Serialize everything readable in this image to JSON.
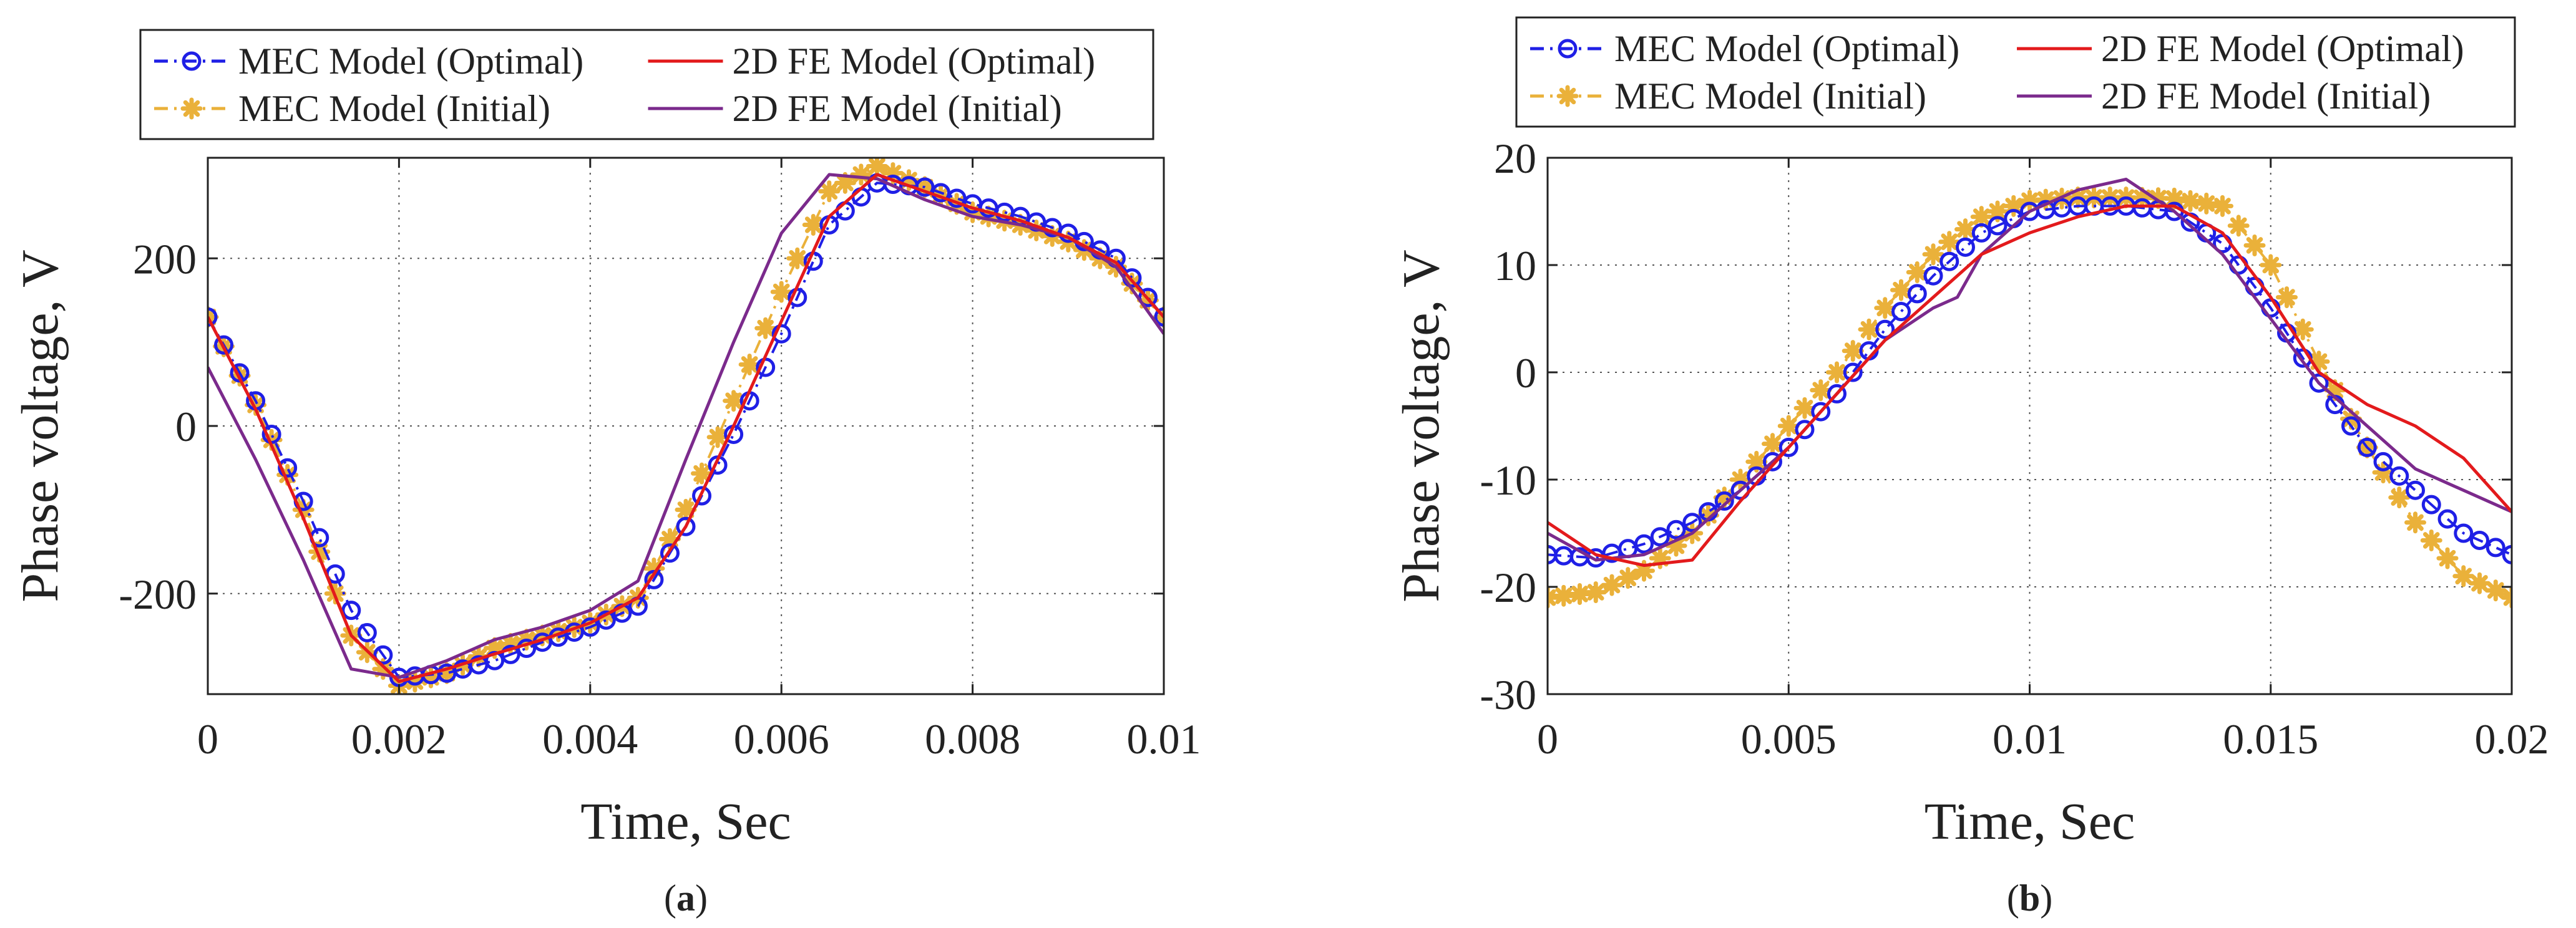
{
  "chart_data": [
    {
      "type": "line",
      "panel_label": "a",
      "xlabel": "Time, Sec",
      "ylabel": "Phase voltage, V",
      "xlim": [
        0,
        0.01
      ],
      "ylim": [
        -320,
        320
      ],
      "xticks": [
        0,
        0.002,
        0.004,
        0.006,
        0.008,
        0.01
      ],
      "xtick_labels": [
        "0",
        "0.002",
        "0.004",
        "0.006",
        "0.008",
        "0.01"
      ],
      "yticks": [
        -200,
        0,
        200
      ],
      "ytick_labels": [
        "-200",
        "0",
        "200"
      ],
      "grid": "dotted",
      "legend": [
        {
          "label": "MEC Model (Optimal)",
          "color": "#1f1fe6",
          "style": "dashdot-circle"
        },
        {
          "label": "2D FE Model (Optimal)",
          "color": "#e31a1c",
          "style": "solid"
        },
        {
          "label": "MEC Model (Initial)",
          "color": "#eab13a",
          "style": "dashdot-star"
        },
        {
          "label": "2D FE Model (Initial)",
          "color": "#7b2a8c",
          "style": "solid"
        }
      ],
      "series": [
        {
          "name": "MEC Model (Optimal)",
          "color": "#1f1fe6",
          "marker": "circle",
          "x": [
            0,
            0.0005,
            0.001,
            0.0015,
            0.002,
            0.0025,
            0.003,
            0.0035,
            0.004,
            0.0045,
            0.005,
            0.0055,
            0.006,
            0.0065,
            0.007,
            0.0075,
            0.008,
            0.0085,
            0.009,
            0.0095,
            0.01
          ],
          "y": [
            130,
            30,
            -90,
            -220,
            -300,
            -295,
            -280,
            -258,
            -240,
            -215,
            -120,
            -10,
            110,
            240,
            290,
            285,
            265,
            250,
            230,
            200,
            130
          ]
        },
        {
          "name": "2D FE Model (Optimal)",
          "color": "#e31a1c",
          "marker": "none",
          "x": [
            0,
            0.0005,
            0.001,
            0.0015,
            0.002,
            0.0025,
            0.003,
            0.0035,
            0.004,
            0.0045,
            0.005,
            0.0055,
            0.006,
            0.0065,
            0.007,
            0.0075,
            0.008,
            0.0085,
            0.009,
            0.0095,
            0.01
          ],
          "y": [
            130,
            20,
            -110,
            -250,
            -305,
            -290,
            -272,
            -255,
            -235,
            -205,
            -120,
            0,
            125,
            250,
            300,
            280,
            260,
            245,
            225,
            195,
            130
          ]
        },
        {
          "name": "MEC Model (Initial)",
          "color": "#eab13a",
          "marker": "star",
          "x": [
            0,
            0.0005,
            0.001,
            0.0015,
            0.002,
            0.0025,
            0.003,
            0.0035,
            0.004,
            0.0045,
            0.005,
            0.0055,
            0.006,
            0.0065,
            0.007,
            0.0075,
            0.008,
            0.0085,
            0.009,
            0.0095,
            0.01
          ],
          "y": [
            130,
            25,
            -100,
            -250,
            -310,
            -295,
            -265,
            -250,
            -235,
            -205,
            -100,
            30,
            160,
            280,
            310,
            285,
            255,
            240,
            220,
            190,
            130
          ]
        },
        {
          "name": "2D FE Model (Initial)",
          "color": "#7b2a8c",
          "marker": "none",
          "x": [
            0,
            0.0005,
            0.001,
            0.0015,
            0.002,
            0.0025,
            0.003,
            0.0035,
            0.004,
            0.0045,
            0.005,
            0.0055,
            0.006,
            0.0065,
            0.007,
            0.0075,
            0.008,
            0.0085,
            0.009,
            0.0095,
            0.01
          ],
          "y": [
            70,
            -40,
            -160,
            -290,
            -300,
            -280,
            -255,
            -240,
            -220,
            -185,
            -40,
            100,
            230,
            300,
            295,
            270,
            250,
            240,
            225,
            190,
            110
          ]
        }
      ]
    },
    {
      "type": "line",
      "panel_label": "b",
      "xlabel": "Time, Sec",
      "ylabel": "Phase voltage, V",
      "xlim": [
        0,
        0.02
      ],
      "ylim": [
        -30,
        20
      ],
      "xticks": [
        0,
        0.005,
        0.01,
        0.015,
        0.02
      ],
      "xtick_labels": [
        "0",
        "0.005",
        "0.01",
        "0.015",
        "0.02"
      ],
      "yticks": [
        -30,
        -20,
        -10,
        0,
        10,
        20
      ],
      "ytick_labels": [
        "-30",
        "-20",
        "-10",
        "0",
        "10",
        "20"
      ],
      "grid": "dotted",
      "legend": [
        {
          "label": "MEC Model (Optimal)",
          "color": "#1f1fe6",
          "style": "dashdot-circle"
        },
        {
          "label": "2D FE Model (Optimal)",
          "color": "#e31a1c",
          "style": "solid"
        },
        {
          "label": "MEC Model (Initial)",
          "color": "#eab13a",
          "style": "dashdot-star"
        },
        {
          "label": "2D FE Model (Initial)",
          "color": "#7b2a8c",
          "style": "solid"
        }
      ],
      "series": [
        {
          "name": "MEC Model (Optimal)",
          "color": "#1f1fe6",
          "marker": "circle",
          "x": [
            0,
            0.001,
            0.002,
            0.003,
            0.004,
            0.005,
            0.006,
            0.007,
            0.008,
            0.009,
            0.01,
            0.011,
            0.012,
            0.013,
            0.014,
            0.015,
            0.016,
            0.017,
            0.018,
            0.019,
            0.02
          ],
          "y": [
            -17,
            -17.3,
            -16,
            -14,
            -11,
            -7,
            -2,
            4,
            9,
            13,
            15,
            15.5,
            15.5,
            15,
            12,
            6,
            -1,
            -7,
            -11,
            -15,
            -17
          ]
        },
        {
          "name": "2D FE Model (Optimal)",
          "color": "#e31a1c",
          "marker": "none",
          "x": [
            0,
            0.001,
            0.002,
            0.003,
            0.004,
            0.005,
            0.006,
            0.007,
            0.008,
            0.009,
            0.01,
            0.011,
            0.012,
            0.013,
            0.014,
            0.015,
            0.016,
            0.017,
            0.018,
            0.0185,
            0.019,
            0.02
          ],
          "y": [
            -14,
            -17,
            -18,
            -17.5,
            -12,
            -7,
            -2,
            3,
            7,
            11,
            13,
            14.5,
            15.5,
            15.5,
            13,
            7,
            0,
            -3,
            -5,
            -6.5,
            -8,
            -13
          ]
        },
        {
          "name": "MEC Model (Initial)",
          "color": "#eab13a",
          "marker": "star",
          "x": [
            0,
            0.001,
            0.002,
            0.003,
            0.004,
            0.005,
            0.006,
            0.007,
            0.008,
            0.009,
            0.01,
            0.011,
            0.012,
            0.013,
            0.014,
            0.015,
            0.016,
            0.017,
            0.018,
            0.019,
            0.02
          ],
          "y": [
            -21,
            -20.5,
            -18.5,
            -15,
            -10,
            -5,
            0,
            6,
            11,
            14.5,
            16,
            16.3,
            16.3,
            16.2,
            15.5,
            10,
            1,
            -7,
            -14,
            -19,
            -21
          ]
        },
        {
          "name": "2D FE Model (Initial)",
          "color": "#7b2a8c",
          "marker": "none",
          "x": [
            0,
            0.001,
            0.002,
            0.003,
            0.004,
            0.005,
            0.006,
            0.007,
            0.008,
            0.0085,
            0.009,
            0.01,
            0.011,
            0.012,
            0.013,
            0.014,
            0.015,
            0.016,
            0.017,
            0.018,
            0.019,
            0.02
          ],
          "y": [
            -15,
            -17.5,
            -17,
            -15,
            -11,
            -7,
            -2,
            3,
            6,
            7,
            11,
            15,
            17,
            18,
            15,
            11,
            5,
            -1,
            -5,
            -9,
            -11,
            -13
          ]
        }
      ]
    }
  ]
}
